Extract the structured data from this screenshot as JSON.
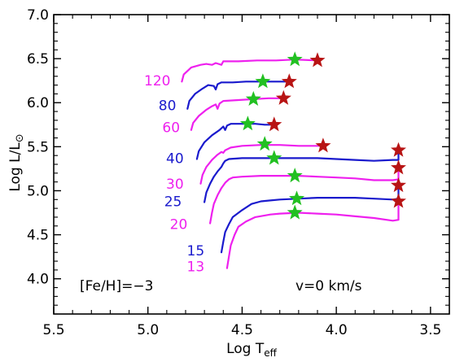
{
  "colors": {
    "magenta": "#ee20ee",
    "blue": "#1a1acd",
    "green_star": "#22c022",
    "red_star": "#b81414",
    "axes": "#000000"
  },
  "chart_data": {
    "type": "line",
    "xlabel_main": "Log T",
    "xlabel_sub": "eff",
    "ylabel_main": "Log L/L",
    "ylabel_sym": "⊙",
    "xlim": [
      5.5,
      3.4
    ],
    "ylim": [
      3.6,
      7.0
    ],
    "x_ticks": [
      5.5,
      5.0,
      4.5,
      4.0,
      3.5
    ],
    "x_tick_labels": [
      "5.5",
      "5.0",
      "4.5",
      "4.0",
      "3.5"
    ],
    "y_ticks": [
      4.0,
      4.5,
      5.0,
      5.5,
      6.0,
      6.5,
      7.0
    ],
    "y_tick_labels": [
      "4.0",
      "4.5",
      "5.0",
      "5.5",
      "6.0",
      "6.5",
      "7.0"
    ],
    "annotations": [
      "[Fe/H]=−3",
      "v=0 km/s"
    ],
    "series": [
      {
        "name": "120",
        "color": "magenta",
        "label_pos": [
          4.88,
          6.25
        ],
        "points": [
          [
            4.82,
            6.24
          ],
          [
            4.81,
            6.32
          ],
          [
            4.77,
            6.4
          ],
          [
            4.72,
            6.43
          ],
          [
            4.69,
            6.44
          ],
          [
            4.66,
            6.43
          ],
          [
            4.64,
            6.45
          ],
          [
            4.61,
            6.43
          ],
          [
            4.6,
            6.47
          ],
          [
            4.52,
            6.47
          ],
          [
            4.42,
            6.48
          ],
          [
            4.32,
            6.48
          ],
          [
            4.22,
            6.49
          ],
          [
            4.1,
            6.48
          ]
        ],
        "green": [
          4.22,
          6.49
        ],
        "red": [
          4.1,
          6.48
        ]
      },
      {
        "name": "80",
        "color": "blue",
        "label_pos": [
          4.85,
          5.97
        ],
        "points": [
          [
            4.79,
            5.93
          ],
          [
            4.78,
            6.02
          ],
          [
            4.75,
            6.1
          ],
          [
            4.71,
            6.16
          ],
          [
            4.68,
            6.2
          ],
          [
            4.65,
            6.19
          ],
          [
            4.64,
            6.15
          ],
          [
            4.63,
            6.21
          ],
          [
            4.61,
            6.23
          ],
          [
            4.55,
            6.23
          ],
          [
            4.48,
            6.24
          ],
          [
            4.4,
            6.24
          ],
          [
            4.32,
            6.24
          ],
          [
            4.25,
            6.24
          ]
        ],
        "green": [
          4.39,
          6.24
        ],
        "red": [
          4.25,
          6.24
        ]
      },
      {
        "name": "60",
        "color": "magenta",
        "label_pos": [
          4.83,
          5.72
        ],
        "points": [
          [
            4.77,
            5.69
          ],
          [
            4.76,
            5.77
          ],
          [
            4.73,
            5.85
          ],
          [
            4.69,
            5.92
          ],
          [
            4.66,
            5.96
          ],
          [
            4.64,
            5.98
          ],
          [
            4.63,
            5.93
          ],
          [
            4.62,
            5.99
          ],
          [
            4.6,
            6.02
          ],
          [
            4.52,
            6.03
          ],
          [
            4.44,
            6.04
          ],
          [
            4.36,
            6.05
          ],
          [
            4.28,
            6.05
          ]
        ],
        "green": [
          4.44,
          6.04
        ],
        "red": [
          4.28,
          6.05
        ]
      },
      {
        "name": "40",
        "color": "blue",
        "label_pos": [
          4.81,
          5.37
        ],
        "points": [
          [
            4.74,
            5.36
          ],
          [
            4.73,
            5.45
          ],
          [
            4.7,
            5.55
          ],
          [
            4.66,
            5.63
          ],
          [
            4.62,
            5.69
          ],
          [
            4.6,
            5.73
          ],
          [
            4.59,
            5.69
          ],
          [
            4.58,
            5.74
          ],
          [
            4.56,
            5.76
          ],
          [
            4.5,
            5.76
          ],
          [
            4.43,
            5.76
          ],
          [
            4.38,
            5.75
          ],
          [
            4.33,
            5.75
          ]
        ],
        "green": [
          4.47,
          5.76
        ],
        "red": [
          4.33,
          5.75
        ]
      },
      {
        "name": "30",
        "color": "magenta",
        "label_pos": [
          4.81,
          5.08
        ],
        "points": [
          [
            4.72,
            5.08
          ],
          [
            4.71,
            5.18
          ],
          [
            4.69,
            5.27
          ],
          [
            4.66,
            5.35
          ],
          [
            4.63,
            5.41
          ],
          [
            4.61,
            5.44
          ],
          [
            4.6,
            5.43
          ],
          [
            4.59,
            5.46
          ],
          [
            4.56,
            5.49
          ],
          [
            4.5,
            5.51
          ],
          [
            4.4,
            5.52
          ],
          [
            4.3,
            5.52
          ],
          [
            4.2,
            5.51
          ],
          [
            4.07,
            5.51
          ]
        ],
        "green": [
          4.38,
          5.53
        ],
        "red": [
          4.07,
          5.51
        ]
      },
      {
        "name": "25",
        "color": "blue",
        "label_pos": [
          4.82,
          4.88
        ],
        "points": [
          [
            4.7,
            4.87
          ],
          [
            4.69,
            4.98
          ],
          [
            4.67,
            5.08
          ],
          [
            4.65,
            5.16
          ],
          [
            4.63,
            5.22
          ],
          [
            4.61,
            5.27
          ],
          [
            4.6,
            5.31
          ],
          [
            4.59,
            5.34
          ],
          [
            4.57,
            5.36
          ],
          [
            4.5,
            5.37
          ],
          [
            4.4,
            5.37
          ],
          [
            4.3,
            5.37
          ],
          [
            4.2,
            5.37
          ],
          [
            4.1,
            5.37
          ],
          [
            4.0,
            5.36
          ],
          [
            3.9,
            5.35
          ],
          [
            3.8,
            5.34
          ],
          [
            3.7,
            5.35
          ],
          [
            3.67,
            5.35
          ],
          [
            3.67,
            5.45
          ]
        ],
        "green": [
          4.33,
          5.37
        ],
        "red": [
          3.67,
          5.46
        ]
      },
      {
        "name": "20",
        "color": "magenta",
        "label_pos": [
          4.79,
          4.62
        ],
        "points": [
          [
            4.67,
            4.63
          ],
          [
            4.66,
            4.75
          ],
          [
            4.65,
            4.85
          ],
          [
            4.63,
            4.95
          ],
          [
            4.61,
            5.03
          ],
          [
            4.59,
            5.09
          ],
          [
            4.57,
            5.13
          ],
          [
            4.55,
            5.15
          ],
          [
            4.5,
            5.16
          ],
          [
            4.4,
            5.17
          ],
          [
            4.3,
            5.17
          ],
          [
            4.2,
            5.17
          ],
          [
            4.1,
            5.16
          ],
          [
            4.0,
            5.15
          ],
          [
            3.9,
            5.14
          ],
          [
            3.8,
            5.12
          ],
          [
            3.7,
            5.12
          ],
          [
            3.67,
            5.13
          ],
          [
            3.67,
            5.26
          ]
        ],
        "green": [
          4.22,
          5.17
        ],
        "red": [
          3.67,
          5.26
        ]
      },
      {
        "name": "15",
        "color": "blue",
        "label_pos": [
          4.7,
          4.32
        ],
        "points": [
          [
            4.61,
            4.3
          ],
          [
            4.6,
            4.42
          ],
          [
            4.59,
            4.53
          ],
          [
            4.57,
            4.62
          ],
          [
            4.55,
            4.7
          ],
          [
            4.5,
            4.78
          ],
          [
            4.45,
            4.85
          ],
          [
            4.4,
            4.88
          ],
          [
            4.35,
            4.89
          ],
          [
            4.3,
            4.9
          ],
          [
            4.2,
            4.91
          ],
          [
            4.1,
            4.92
          ],
          [
            4.0,
            4.92
          ],
          [
            3.9,
            4.92
          ],
          [
            3.8,
            4.91
          ],
          [
            3.7,
            4.9
          ],
          [
            3.67,
            4.91
          ],
          [
            3.67,
            5.06
          ]
        ],
        "green": [
          4.21,
          4.91
        ],
        "red": [
          3.67,
          5.06
        ]
      },
      {
        "name": "13",
        "color": "magenta",
        "label_pos": [
          4.7,
          4.14
        ],
        "points": [
          [
            4.58,
            4.12
          ],
          [
            4.57,
            4.25
          ],
          [
            4.56,
            4.38
          ],
          [
            4.54,
            4.5
          ],
          [
            4.52,
            4.59
          ],
          [
            4.48,
            4.65
          ],
          [
            4.43,
            4.7
          ],
          [
            4.35,
            4.73
          ],
          [
            4.3,
            4.74
          ],
          [
            4.2,
            4.75
          ],
          [
            4.1,
            4.74
          ],
          [
            4.0,
            4.73
          ],
          [
            3.9,
            4.71
          ],
          [
            3.8,
            4.69
          ],
          [
            3.7,
            4.66
          ],
          [
            3.67,
            4.67
          ],
          [
            3.67,
            4.88
          ]
        ],
        "green": [
          4.22,
          4.75
        ],
        "red": [
          3.67,
          4.88
        ]
      }
    ]
  }
}
